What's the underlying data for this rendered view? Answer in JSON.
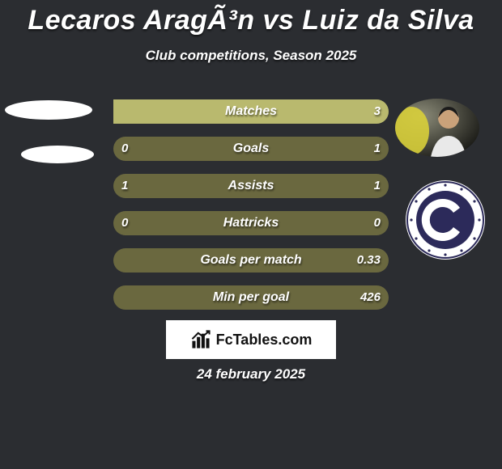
{
  "title": "Lecaros AragÃ³n vs Luiz da Silva",
  "subtitle": "Club competitions, Season 2025",
  "date": "24 february 2025",
  "colors": {
    "background": "#2b2d31",
    "bar_bg": "#6a683f",
    "bar_fill": "#b9b96e",
    "text": "#ffffff",
    "badge_navy": "#2c2a5a",
    "badge_white": "#ffffff"
  },
  "footer_brand": "FcTables.com",
  "stats": [
    {
      "label": "Matches",
      "left_text": "",
      "right_text": "3",
      "left_pct": 0,
      "right_pct": 100
    },
    {
      "label": "Goals",
      "left_text": "0",
      "right_text": "1",
      "left_pct": 0,
      "right_pct": 0
    },
    {
      "label": "Assists",
      "left_text": "1",
      "right_text": "1",
      "left_pct": 0,
      "right_pct": 0
    },
    {
      "label": "Hattricks",
      "left_text": "0",
      "right_text": "0",
      "left_pct": 0,
      "right_pct": 0
    },
    {
      "label": "Goals per match",
      "left_text": "",
      "right_text": "0.33",
      "left_pct": 0,
      "right_pct": 0
    },
    {
      "label": "Min per goal",
      "left_text": "",
      "right_text": "426",
      "left_pct": 0,
      "right_pct": 0
    }
  ]
}
